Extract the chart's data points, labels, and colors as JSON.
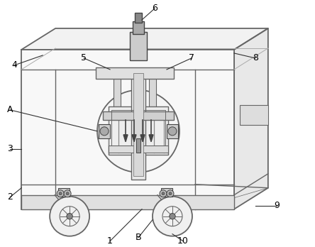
{
  "bg_color": "#ffffff",
  "lc": "#666666",
  "dk": "#444444",
  "fig_w": 4.44,
  "fig_h": 3.48,
  "dpi": 100
}
